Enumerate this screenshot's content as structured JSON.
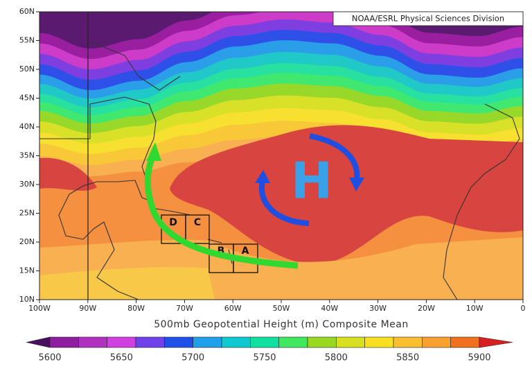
{
  "header": {
    "credit": "NOAA/ESRL Physical Sciences Division"
  },
  "map": {
    "title": "500mb Geopotential Height (m) Composite Mean",
    "lon_labels": [
      "100W",
      "90W",
      "80W",
      "70W",
      "60W",
      "50W",
      "40W",
      "30W",
      "20W",
      "10W",
      "0"
    ],
    "lat_labels": [
      "60N",
      "55N",
      "50N",
      "45N",
      "40N",
      "35N",
      "30N",
      "25N",
      "20N",
      "15N",
      "10N"
    ],
    "high_label": "H",
    "boxes": [
      "D",
      "C",
      "B",
      "A"
    ]
  },
  "colorbar": {
    "labels": [
      5600,
      5650,
      5700,
      5750,
      5800,
      5850,
      5900
    ],
    "colors": [
      "#4a1060",
      "#8e1ea0",
      "#b030c0",
      "#d040e0",
      "#7040e8",
      "#2050e8",
      "#20a0e8",
      "#10c8d0",
      "#10e0a0",
      "#40e860",
      "#98d820",
      "#d8e020",
      "#f8e020",
      "#f8c030",
      "#f8a030",
      "#f07020",
      "#d82020"
    ]
  }
}
